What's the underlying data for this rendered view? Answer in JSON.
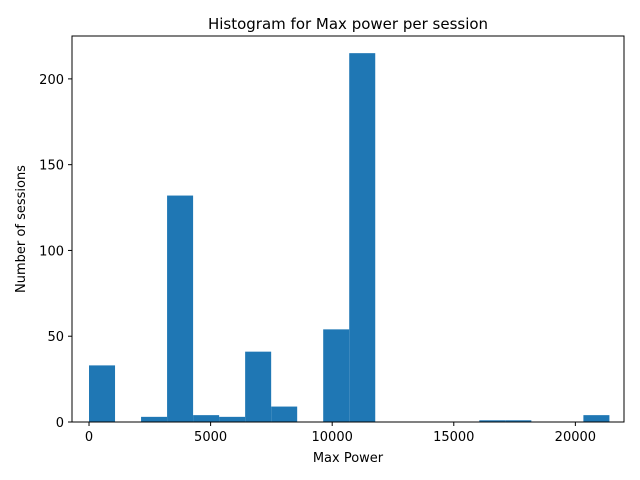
{
  "chart_data": {
    "type": "bar",
    "title": "Histogram for Max power per session",
    "xlabel": "Max Power",
    "ylabel": "Number of sessions",
    "xlim": [
      -700,
      22000
    ],
    "ylim": [
      0,
      225
    ],
    "xticks": [
      0,
      5000,
      10000,
      15000,
      20000
    ],
    "yticks": [
      0,
      50,
      100,
      150,
      200
    ],
    "bar_color": "#1f77b4",
    "bins": [
      {
        "start": 0,
        "end": 1070,
        "count": 33
      },
      {
        "start": 2140,
        "end": 3210,
        "count": 3
      },
      {
        "start": 3210,
        "end": 4280,
        "count": 132
      },
      {
        "start": 4280,
        "end": 5350,
        "count": 4
      },
      {
        "start": 5350,
        "end": 6420,
        "count": 3
      },
      {
        "start": 6420,
        "end": 7490,
        "count": 41
      },
      {
        "start": 7490,
        "end": 8560,
        "count": 9
      },
      {
        "start": 9630,
        "end": 10700,
        "count": 54
      },
      {
        "start": 10700,
        "end": 11770,
        "count": 215
      },
      {
        "start": 16050,
        "end": 17120,
        "count": 1
      },
      {
        "start": 17120,
        "end": 18190,
        "count": 1
      },
      {
        "start": 20330,
        "end": 21400,
        "count": 4
      }
    ],
    "grid": false,
    "legend": "none"
  }
}
